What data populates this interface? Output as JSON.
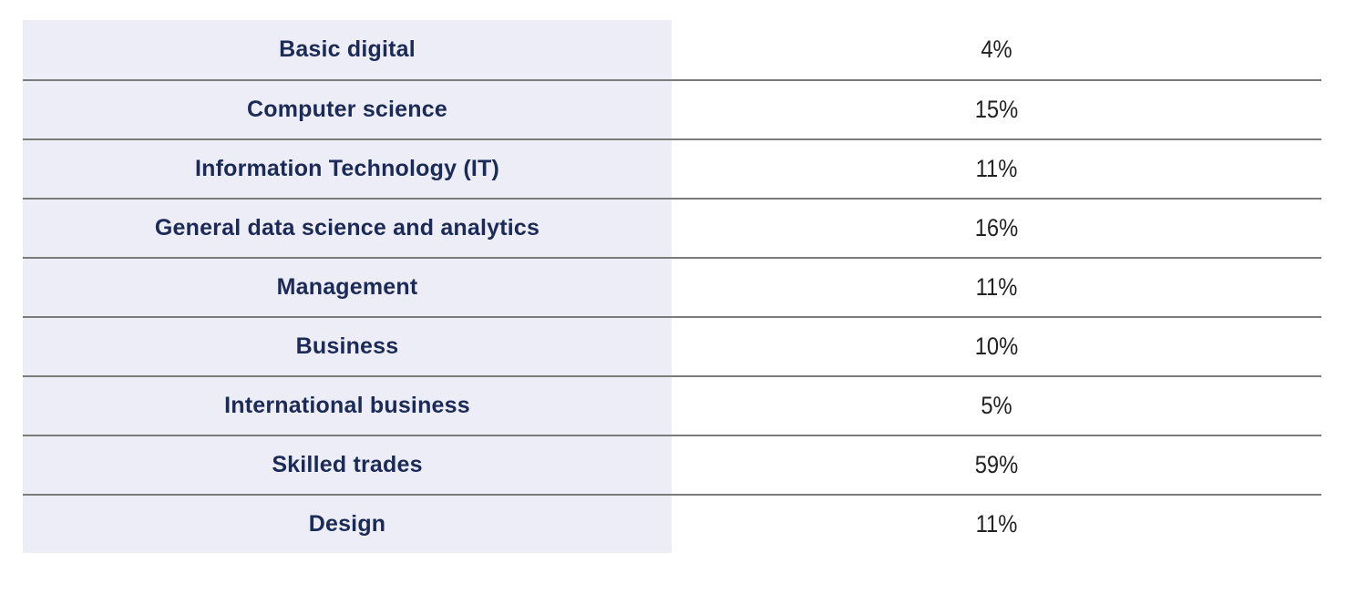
{
  "table": {
    "rows": [
      {
        "label": "Basic digital",
        "value": "4%"
      },
      {
        "label": "Computer science",
        "value": "15%"
      },
      {
        "label": "Information Technology (IT)",
        "value": "11%"
      },
      {
        "label": "General data science and analytics",
        "value": "16%"
      },
      {
        "label": "Management",
        "value": "11%"
      },
      {
        "label": "Business",
        "value": "10%"
      },
      {
        "label": "International business",
        "value": "5%"
      },
      {
        "label": "Skilled trades",
        "value": "59%"
      },
      {
        "label": "Design",
        "value": "11%"
      }
    ]
  },
  "colors": {
    "label_cell_background": "#ecedf6",
    "label_text": "#1b2a56",
    "value_text": "#222222",
    "row_divider": "#7b7b7b",
    "page_background": "#ffffff"
  },
  "chart_data": {
    "type": "table",
    "title": "",
    "categories": [
      "Basic digital",
      "Computer science",
      "Information Technology (IT)",
      "General data science and analytics",
      "Management",
      "Business",
      "International business",
      "Skilled trades",
      "Design"
    ],
    "values": [
      4,
      15,
      11,
      16,
      11,
      10,
      5,
      59,
      11
    ],
    "value_unit": "%",
    "columns": [
      "category",
      "percentage"
    ],
    "grid": "horizontal-dividers-only",
    "legend": "none"
  }
}
